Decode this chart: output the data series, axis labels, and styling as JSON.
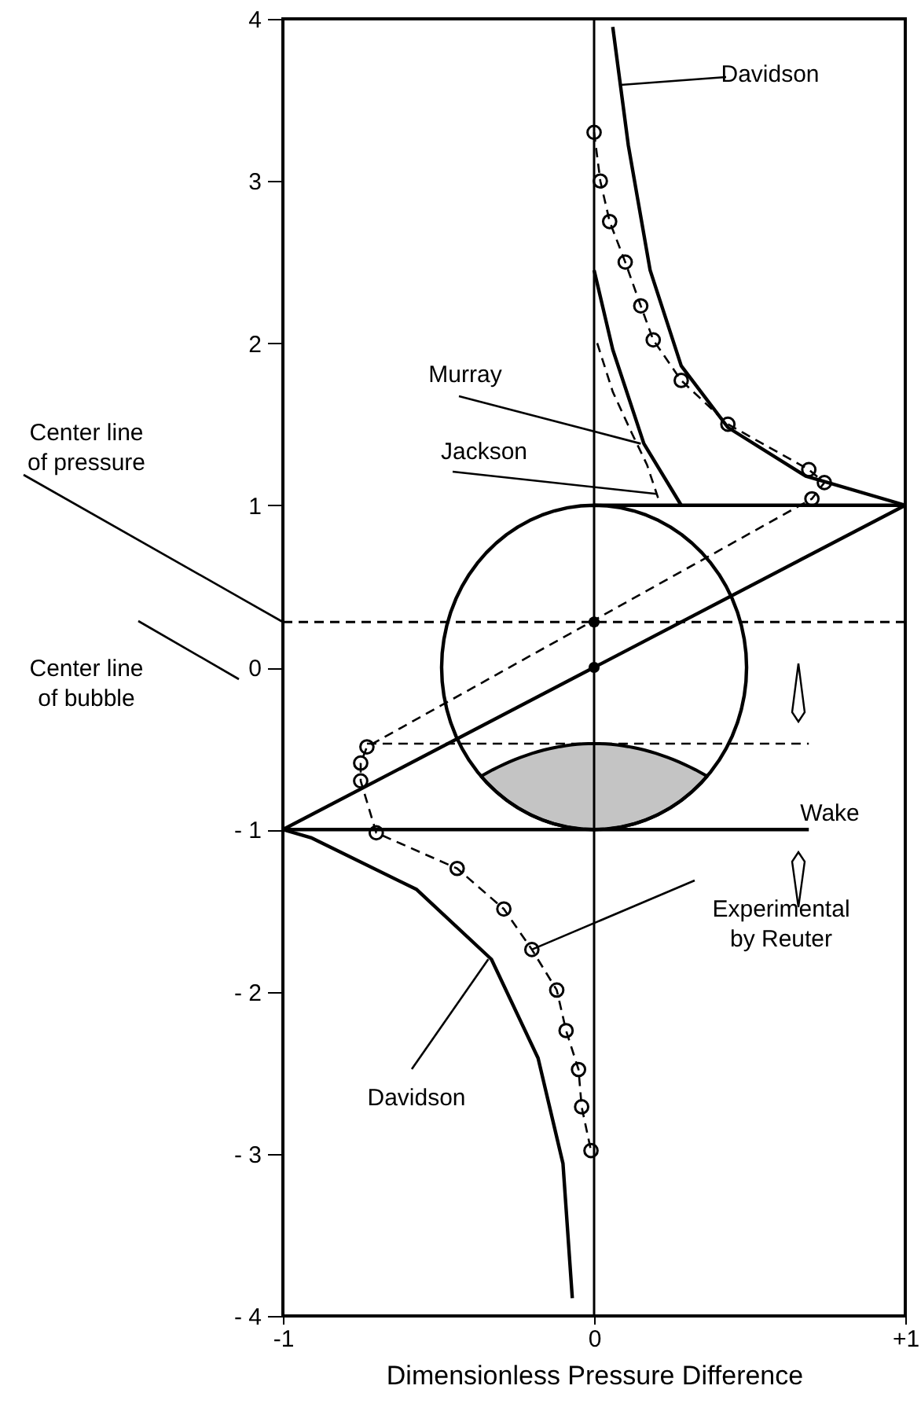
{
  "chart_data": {
    "type": "line",
    "xlabel": "Dimensionless Pressure Difference",
    "xlim": [
      -1,
      1
    ],
    "xticks": [
      -1,
      0,
      {
        "value": 1,
        "label": "+1"
      }
    ],
    "ylim": [
      -4,
      4
    ],
    "yticks": [
      {
        "value": -4,
        "label": "- 4"
      },
      {
        "value": -3,
        "label": "- 3"
      },
      {
        "value": -2,
        "label": "- 2"
      },
      {
        "value": -1,
        "label": "- 1"
      },
      0,
      1,
      2,
      3,
      4
    ],
    "grid": false,
    "series": [
      {
        "color": "#000000",
        "line_style": "solid",
        "x": [
          0.06,
          0.11,
          0.18,
          0.28,
          0.43,
          0.68,
          1.0
        ],
        "values": [
          3.95,
          3.22,
          2.45,
          1.86,
          1.48,
          1.18,
          1.0
        ]
      },
      {
        "color": "#000000",
        "line_style": "solid",
        "x": [
          -1.0,
          -0.91,
          -0.57,
          -0.33,
          -0.18,
          -0.1,
          -0.07
        ],
        "values": [
          -1.0,
          -1.05,
          -1.37,
          -1.8,
          -2.41,
          -3.06,
          -3.89
        ]
      },
      {
        "color": "#000000",
        "line_style": "solid",
        "x": [
          0.0,
          0.06,
          0.16,
          0.28
        ],
        "values": [
          2.45,
          1.96,
          1.38,
          1.0
        ]
      },
      {
        "color": "#000000",
        "line_style": "dashed",
        "x": [
          0.01,
          0.06,
          0.12,
          0.17,
          0.21
        ],
        "values": [
          2.0,
          1.7,
          1.45,
          1.25,
          1.02
        ]
      },
      {
        "color": "#000000",
        "line_style": "dashed",
        "marker": "circle",
        "x": [
          0.0,
          0.02,
          0.05,
          0.1,
          0.15,
          0.19,
          0.28,
          0.43,
          0.69,
          0.74,
          0.7,
          -0.73,
          -0.75,
          -0.75,
          -0.7,
          -0.44,
          -0.29,
          -0.2,
          -0.12,
          -0.09,
          -0.05,
          -0.04,
          -0.01
        ],
        "values": [
          3.3,
          3.0,
          2.75,
          2.5,
          2.23,
          2.02,
          1.77,
          1.5,
          1.22,
          1.14,
          1.04,
          -0.49,
          -0.59,
          -0.7,
          -1.02,
          -1.24,
          -1.49,
          -1.74,
          -1.99,
          -2.24,
          -2.48,
          -2.71,
          -2.98
        ]
      },
      {
        "color": "#000000",
        "line_style": "solid",
        "x": [
          -1,
          1
        ],
        "values": [
          -1,
          1
        ]
      },
      {
        "color": "#000000",
        "line_style": "solid",
        "x": [
          0,
          1
        ],
        "values": [
          1,
          1
        ]
      },
      {
        "color": "#000000",
        "line_style": "solid",
        "x": [
          -1,
          0.69
        ],
        "values": [
          -1,
          -1
        ]
      },
      {
        "color": "#000000",
        "line_style": "dashed",
        "x": [
          -0.73,
          0.69
        ],
        "values": [
          -0.47,
          -0.47
        ]
      },
      {
        "type": "scatter",
        "color": "#000000",
        "marker": "circle",
        "x": [
          0,
          0
        ],
        "values": [
          0.28,
          0
        ]
      }
    ],
    "ref_lines": [
      {
        "axis": "x",
        "value": 0,
        "line_style": "solid"
      },
      {
        "axis": "y",
        "value": 0.28,
        "line_style": "dashed",
        "label": "Center line\nof pressure"
      }
    ],
    "annotations": [
      "Davidson",
      {
        "text": "Murray",
        "x": 0.15,
        "y": 1.38
      },
      {
        "text": "Jackson",
        "x": 0.2,
        "y": 1.07
      },
      {
        "text": "Experimental\nby Reuter",
        "x": -0.2,
        "y": -1.74
      },
      {
        "text": "Davidson",
        "x": -0.34,
        "y": -1.8
      },
      "Wake",
      "Center line\nof bubble"
    ]
  }
}
